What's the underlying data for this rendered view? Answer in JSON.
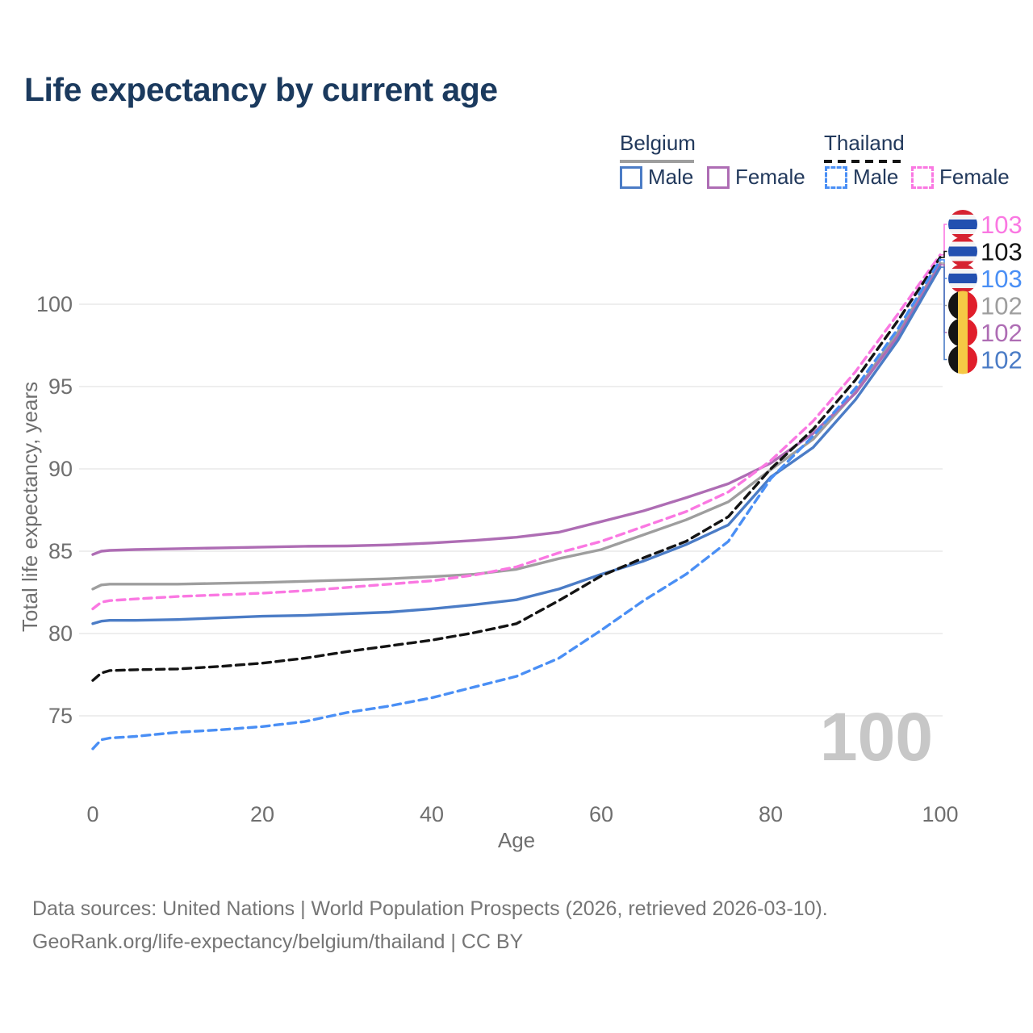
{
  "title": "Life expectancy by current age",
  "watermark": "100",
  "legend": {
    "groups": [
      {
        "label": "Belgium",
        "line_color": "#9e9e9e",
        "dash": false,
        "items": [
          {
            "label": "Male",
            "color": "#4b7cc6",
            "dash": false
          },
          {
            "label": "Female",
            "color": "#ae6db4",
            "dash": false
          }
        ]
      },
      {
        "label": "Thailand",
        "line_color": "#141414",
        "dash": true,
        "items": [
          {
            "label": "Male",
            "color": "#4a8ff5",
            "dash": true
          },
          {
            "label": "Female",
            "color": "#fa78e2",
            "dash": true
          }
        ]
      }
    ]
  },
  "chart_data": {
    "type": "line",
    "title": "Life expectancy by current age",
    "xlabel": "Age",
    "ylabel": "Total life expectancy, years",
    "x_ticks": [
      0,
      20,
      40,
      60,
      80,
      100
    ],
    "y_ticks": [
      75,
      80,
      85,
      90,
      95,
      100
    ],
    "xlim": [
      0,
      100
    ],
    "ylim": [
      72,
      104
    ],
    "grid": "horizontal",
    "legend_position": "top-right",
    "ages": [
      0,
      1,
      2,
      5,
      10,
      15,
      20,
      25,
      30,
      35,
      40,
      45,
      50,
      55,
      60,
      65,
      70,
      75,
      80,
      85,
      90,
      95,
      100
    ],
    "series": [
      {
        "name": "Thailand Female",
        "country": "Thailand",
        "sex": "Female",
        "color": "#fa78e2",
        "dashed": true,
        "flag": "thailand",
        "end_label": "103",
        "values": [
          81.5,
          81.9,
          82.0,
          82.1,
          82.25,
          82.35,
          82.45,
          82.6,
          82.8,
          83.0,
          83.2,
          83.55,
          84.05,
          84.9,
          85.6,
          86.5,
          87.4,
          88.6,
          90.5,
          92.9,
          95.9,
          99.4,
          103.0
        ]
      },
      {
        "name": "Thailand",
        "country": "Thailand",
        "sex": "Both",
        "color": "#141414",
        "dashed": true,
        "flag": "thailand",
        "end_label": "103",
        "values": [
          77.15,
          77.6,
          77.75,
          77.8,
          77.85,
          78.0,
          78.2,
          78.5,
          78.9,
          79.25,
          79.6,
          80.05,
          80.6,
          82.0,
          83.5,
          84.6,
          85.6,
          87.1,
          90.0,
          92.4,
          95.4,
          99.0,
          102.85
        ]
      },
      {
        "name": "Thailand Male",
        "country": "Thailand",
        "sex": "Male",
        "color": "#4a8ff5",
        "dashed": true,
        "flag": "thailand",
        "end_label": "103",
        "values": [
          73.0,
          73.55,
          73.65,
          73.75,
          74.0,
          74.15,
          74.35,
          74.65,
          75.2,
          75.6,
          76.1,
          76.75,
          77.4,
          78.5,
          80.2,
          82.0,
          83.6,
          85.6,
          89.4,
          92.0,
          94.9,
          98.5,
          102.7
        ]
      },
      {
        "name": "Belgium",
        "country": "Belgium",
        "sex": "Both",
        "color": "#9e9e9e",
        "dashed": false,
        "flag": "belgium",
        "end_label": "102",
        "values": [
          82.7,
          82.95,
          83.0,
          83.0,
          83.0,
          83.05,
          83.1,
          83.17,
          83.25,
          83.33,
          83.45,
          83.6,
          83.9,
          84.55,
          85.1,
          86.0,
          86.9,
          88.0,
          89.95,
          91.8,
          94.65,
          98.3,
          102.5
        ]
      },
      {
        "name": "Belgium Female",
        "country": "Belgium",
        "sex": "Female",
        "color": "#ae6db4",
        "dashed": false,
        "flag": "belgium",
        "end_label": "102",
        "values": [
          84.8,
          85.0,
          85.05,
          85.1,
          85.15,
          85.2,
          85.25,
          85.3,
          85.32,
          85.38,
          85.5,
          85.65,
          85.85,
          86.15,
          86.8,
          87.45,
          88.25,
          89.1,
          90.35,
          92.15,
          94.6,
          98.05,
          102.4
        ]
      },
      {
        "name": "Belgium Male",
        "country": "Belgium",
        "sex": "Male",
        "color": "#4b7cc6",
        "dashed": false,
        "flag": "belgium",
        "end_label": "102",
        "values": [
          80.6,
          80.75,
          80.8,
          80.8,
          80.85,
          80.95,
          81.05,
          81.1,
          81.2,
          81.3,
          81.5,
          81.75,
          82.05,
          82.7,
          83.6,
          84.4,
          85.4,
          86.6,
          89.5,
          91.3,
          94.2,
          97.8,
          102.25
        ]
      }
    ]
  },
  "footer": {
    "line1": "Data sources: United Nations | World Population Prospects (2026, retrieved 2026-03-10).",
    "line2": "GeoRank.org/life-expectancy/belgium/thailand | CC BY"
  }
}
